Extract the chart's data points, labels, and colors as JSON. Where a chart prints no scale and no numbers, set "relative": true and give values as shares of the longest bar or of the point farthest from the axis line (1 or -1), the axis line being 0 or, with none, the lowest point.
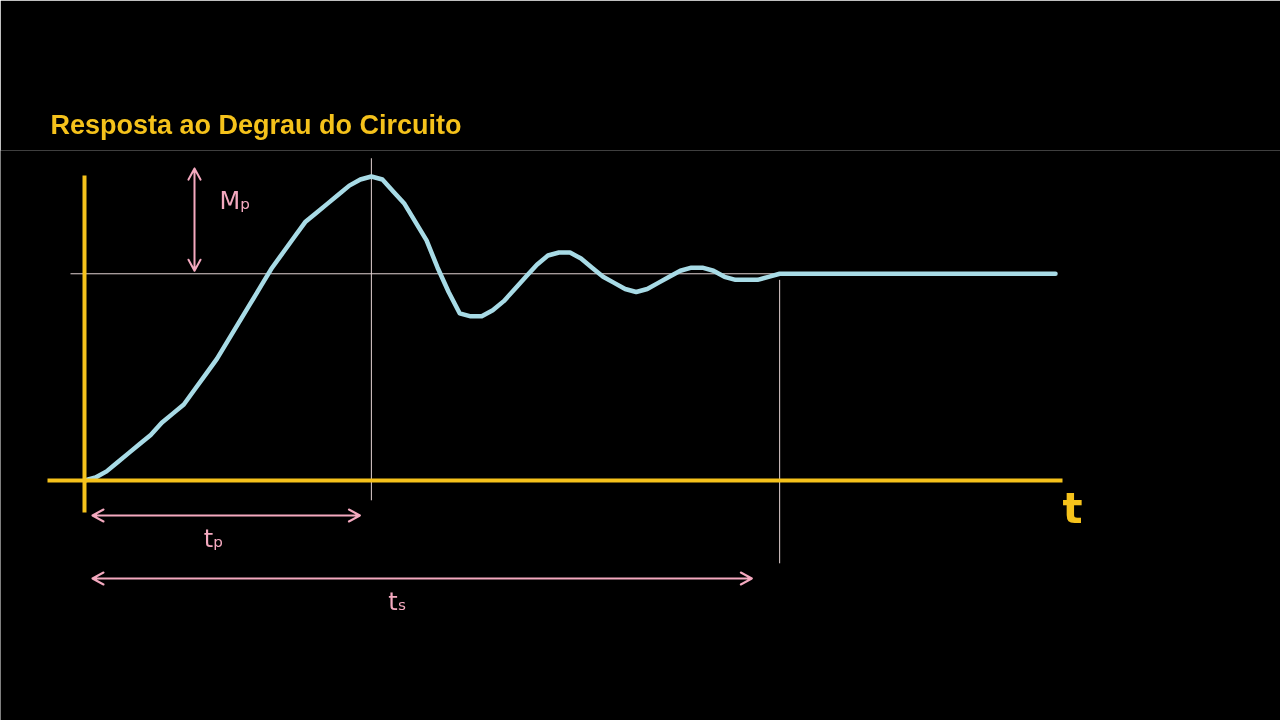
{
  "chart_data": {
    "type": "line",
    "title": "Resposta ao Degrau do Circuito",
    "xlabel": "t",
    "relative": true,
    "categories": [
      null,
      null,
      null,
      null,
      null,
      null,
      null,
      null,
      null,
      null,
      null,
      null,
      null,
      null,
      null,
      null,
      null,
      null,
      null,
      null,
      null,
      null,
      null,
      null,
      null,
      null,
      null,
      null,
      null,
      null,
      null,
      null,
      null,
      null,
      null,
      null,
      null,
      null,
      null,
      null,
      null,
      null,
      null,
      null,
      null,
      null,
      null,
      null,
      null,
      null,
      null,
      null,
      null,
      null,
      null,
      null,
      null,
      null,
      null,
      null,
      null,
      null,
      null,
      null,
      null,
      null,
      null,
      null,
      null,
      null,
      null,
      null,
      null,
      null,
      null,
      null,
      null,
      null,
      null,
      null,
      null,
      null,
      null,
      null,
      null,
      null,
      null,
      null,
      null
    ],
    "series": [
      {
        "color": "#a8dbe6",
        "values": [
          0.0,
          0.01,
          0.03,
          0.06,
          0.09,
          0.12,
          0.15,
          0.19,
          0.22,
          0.25,
          0.3,
          0.35,
          0.4,
          0.46,
          0.52,
          0.58,
          0.64,
          0.7,
          0.75,
          0.8,
          0.85,
          0.88,
          0.91,
          0.94,
          0.97,
          0.99,
          1.0,
          0.99,
          0.95,
          0.91,
          0.85,
          0.79,
          0.7,
          0.62,
          0.55,
          0.54,
          0.54,
          0.56,
          0.59,
          0.63,
          0.67,
          0.71,
          0.74,
          0.75,
          0.75,
          0.73,
          0.7,
          0.67,
          0.65,
          0.63,
          0.62,
          0.63,
          0.65,
          0.67,
          0.69,
          0.7,
          0.7,
          0.69,
          0.67,
          0.66,
          0.66,
          0.66,
          0.67,
          0.68,
          0.68,
          0.68,
          0.68,
          0.68,
          0.68,
          0.68,
          0.68,
          0.68,
          0.68,
          0.68,
          0.68,
          0.68,
          0.68,
          0.68,
          0.68,
          0.68,
          0.68,
          0.68,
          0.68,
          0.68,
          0.68,
          0.68,
          0.68,
          0.68,
          0.68
        ]
      }
    ],
    "ref_lines": [
      {
        "axis": "y",
        "value": 0.68,
        "color": "#e2d2d2"
      }
    ],
    "annotations": [
      "Mₚ",
      "tₚ",
      "tₛ"
    ]
  }
}
